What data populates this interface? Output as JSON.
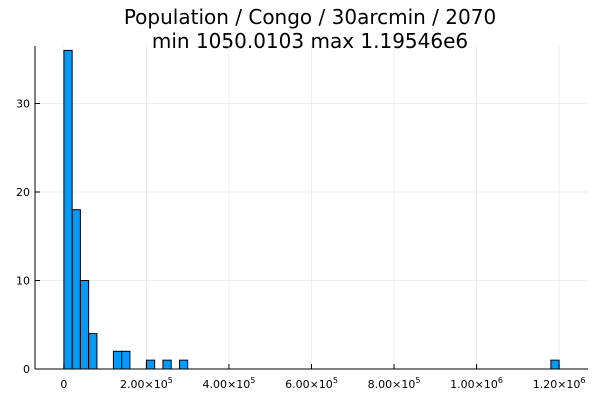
{
  "chart_data": {
    "type": "bar",
    "subtype": "histogram",
    "title_line1": "Population / Congo / 30arcmin / 2070",
    "title_line2": "min 1050.0103  max 1.19546e6",
    "xlim": [
      -70000,
      1270000
    ],
    "ylim": [
      0,
      36.5
    ],
    "bin_width": 20000,
    "bins": [
      {
        "x0": 0,
        "x1": 20000,
        "count": 36
      },
      {
        "x0": 20000,
        "x1": 40000,
        "count": 18
      },
      {
        "x0": 40000,
        "x1": 60000,
        "count": 10
      },
      {
        "x0": 60000,
        "x1": 80000,
        "count": 4
      },
      {
        "x0": 120000,
        "x1": 140000,
        "count": 2
      },
      {
        "x0": 140000,
        "x1": 160000,
        "count": 2
      },
      {
        "x0": 200000,
        "x1": 220000,
        "count": 1
      },
      {
        "x0": 240000,
        "x1": 260000,
        "count": 1
      },
      {
        "x0": 280000,
        "x1": 300000,
        "count": 1
      },
      {
        "x0": 1180000,
        "x1": 1200000,
        "count": 1
      }
    ],
    "x_ticks": [
      {
        "value": 0,
        "mantissa": "0",
        "exponent": ""
      },
      {
        "value": 200000,
        "mantissa": "2.00×10",
        "exponent": "5"
      },
      {
        "value": 400000,
        "mantissa": "4.00×10",
        "exponent": "5"
      },
      {
        "value": 600000,
        "mantissa": "6.00×10",
        "exponent": "5"
      },
      {
        "value": 800000,
        "mantissa": "8.00×10",
        "exponent": "5"
      },
      {
        "value": 1000000,
        "mantissa": "1.00×10",
        "exponent": "6"
      },
      {
        "value": 1200000,
        "mantissa": "1.20×10",
        "exponent": "6"
      }
    ],
    "y_ticks": [
      0,
      10,
      20,
      30
    ],
    "grid": true,
    "legend": "none",
    "bar_color": "#009af9",
    "bar_edge_color": "#000000",
    "grid_color": "#e8e8e8"
  }
}
